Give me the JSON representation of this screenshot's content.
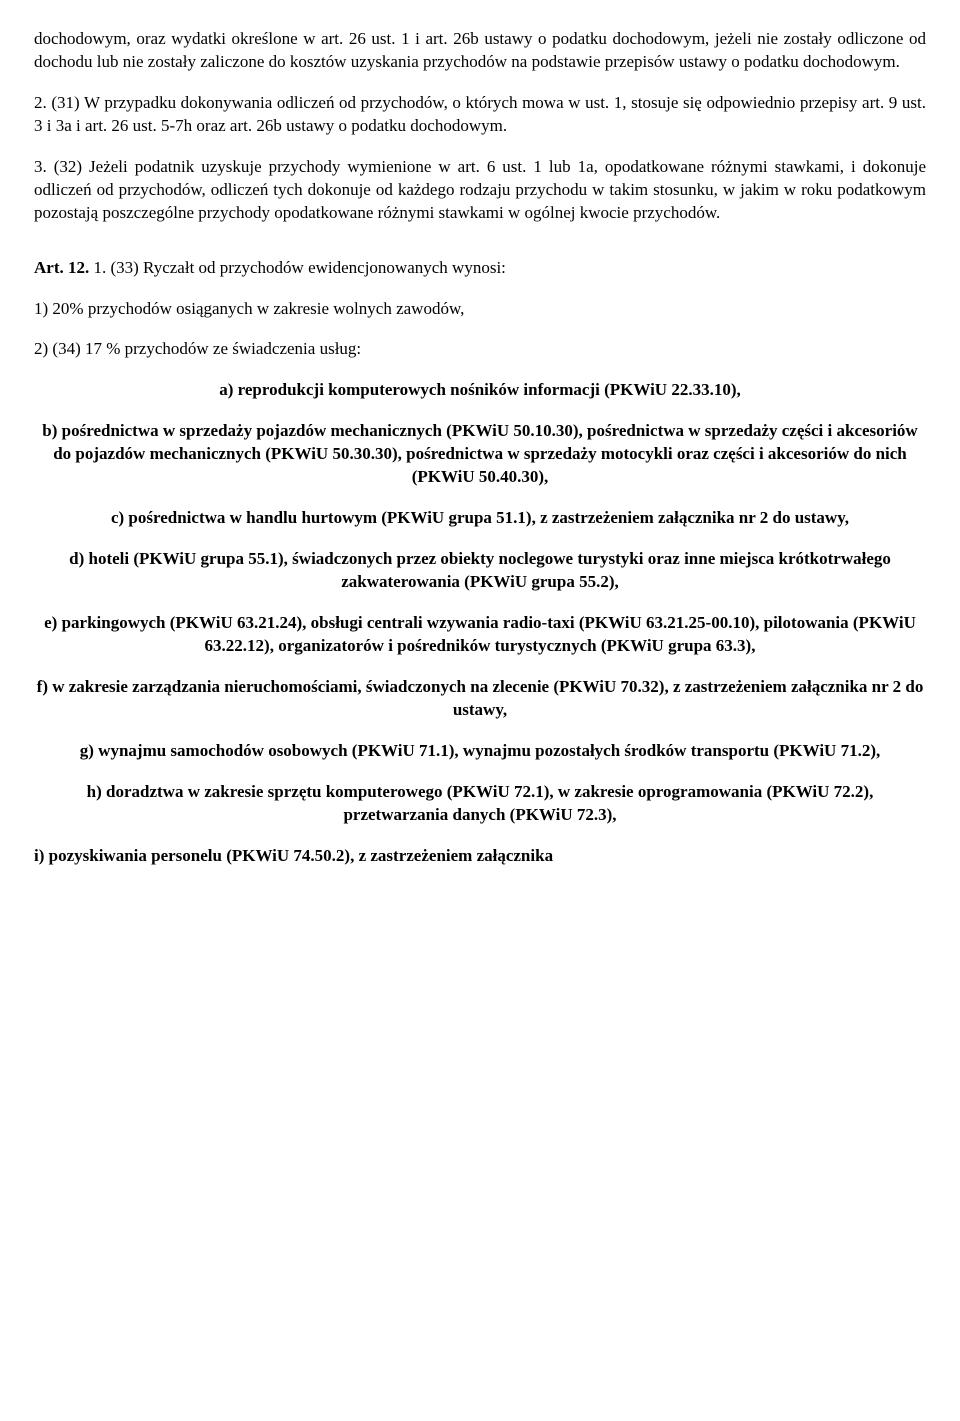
{
  "p1": "dochodowym, oraz wydatki określone w art. 26 ust. 1 i art. 26b ustawy o podatku dochodowym, jeżeli nie zostały odliczone od dochodu lub nie zostały zaliczone do kosztów uzyskania przychodów na podstawie przepisów ustawy o podatku dochodowym.",
  "p2": "2. (31) W przypadku dokonywania odliczeń od przychodów, o których mowa w ust. 1, stosuje się odpowiednio przepisy art. 9 ust. 3 i 3a i art. 26 ust. 5-7h oraz art. 26b ustawy o podatku dochodowym.",
  "p3": "3. (32) Jeżeli podatnik uzyskuje przychody wymienione w art. 6 ust. 1 lub 1a, opodatkowane różnymi stawkami, i dokonuje odliczeń od przychodów, odliczeń tych dokonuje od każdego rodzaju przychodu w takim stosunku, w jakim w roku podatkowym pozostają poszczególne przychody opodatkowane różnymi stawkami w ogólnej kwocie przychodów.",
  "art12_label": "Art. 12.",
  "art12_rest": " 1. (33) Ryczałt od przychodów ewidencjonowanych wynosi:",
  "p5": "1) 20% przychodów osiąganych w zakresie wolnych zawodów,",
  "p6": "2) (34) 17 % przychodów ze świadczenia usług:",
  "a": "a) reprodukcji komputerowych nośników informacji (PKWiU 22.33.10),",
  "b": "b) pośrednictwa w sprzedaży pojazdów mechanicznych (PKWiU 50.10.30), pośrednictwa w sprzedaży części i akcesoriów do pojazdów mechanicznych (PKWiU 50.30.30), pośrednictwa w sprzedaży motocykli oraz części i akcesoriów do nich (PKWiU 50.40.30),",
  "c": "c) pośrednictwa w handlu hurtowym (PKWiU grupa 51.1), z zastrzeżeniem załącznika nr 2 do ustawy,",
  "d": "d) hoteli (PKWiU grupa 55.1), świadczonych przez obiekty noclegowe turystyki oraz inne miejsca krótkotrwałego zakwaterowania (PKWiU grupa 55.2),",
  "e": "e) parkingowych (PKWiU 63.21.24), obsługi centrali wzywania radio-taxi (PKWiU 63.21.25-00.10), pilotowania (PKWiU 63.22.12), organizatorów i pośredników turystycznych (PKWiU grupa 63.3),",
  "f": "f) w zakresie zarządzania nieruchomościami, świadczonych na zlecenie (PKWiU 70.32), z zastrzeżeniem załącznika nr 2 do ustawy,",
  "g": "g) wynajmu samochodów osobowych (PKWiU 71.1), wynajmu pozostałych środków transportu (PKWiU 71.2),",
  "h": "h) doradztwa w zakresie sprzętu komputerowego (PKWiU 72.1), w zakresie oprogramowania (PKWiU 72.2), przetwarzania danych (PKWiU 72.3),",
  "i": "i) pozyskiwania personelu (PKWiU 74.50.2), z zastrzeżeniem załącznika"
}
